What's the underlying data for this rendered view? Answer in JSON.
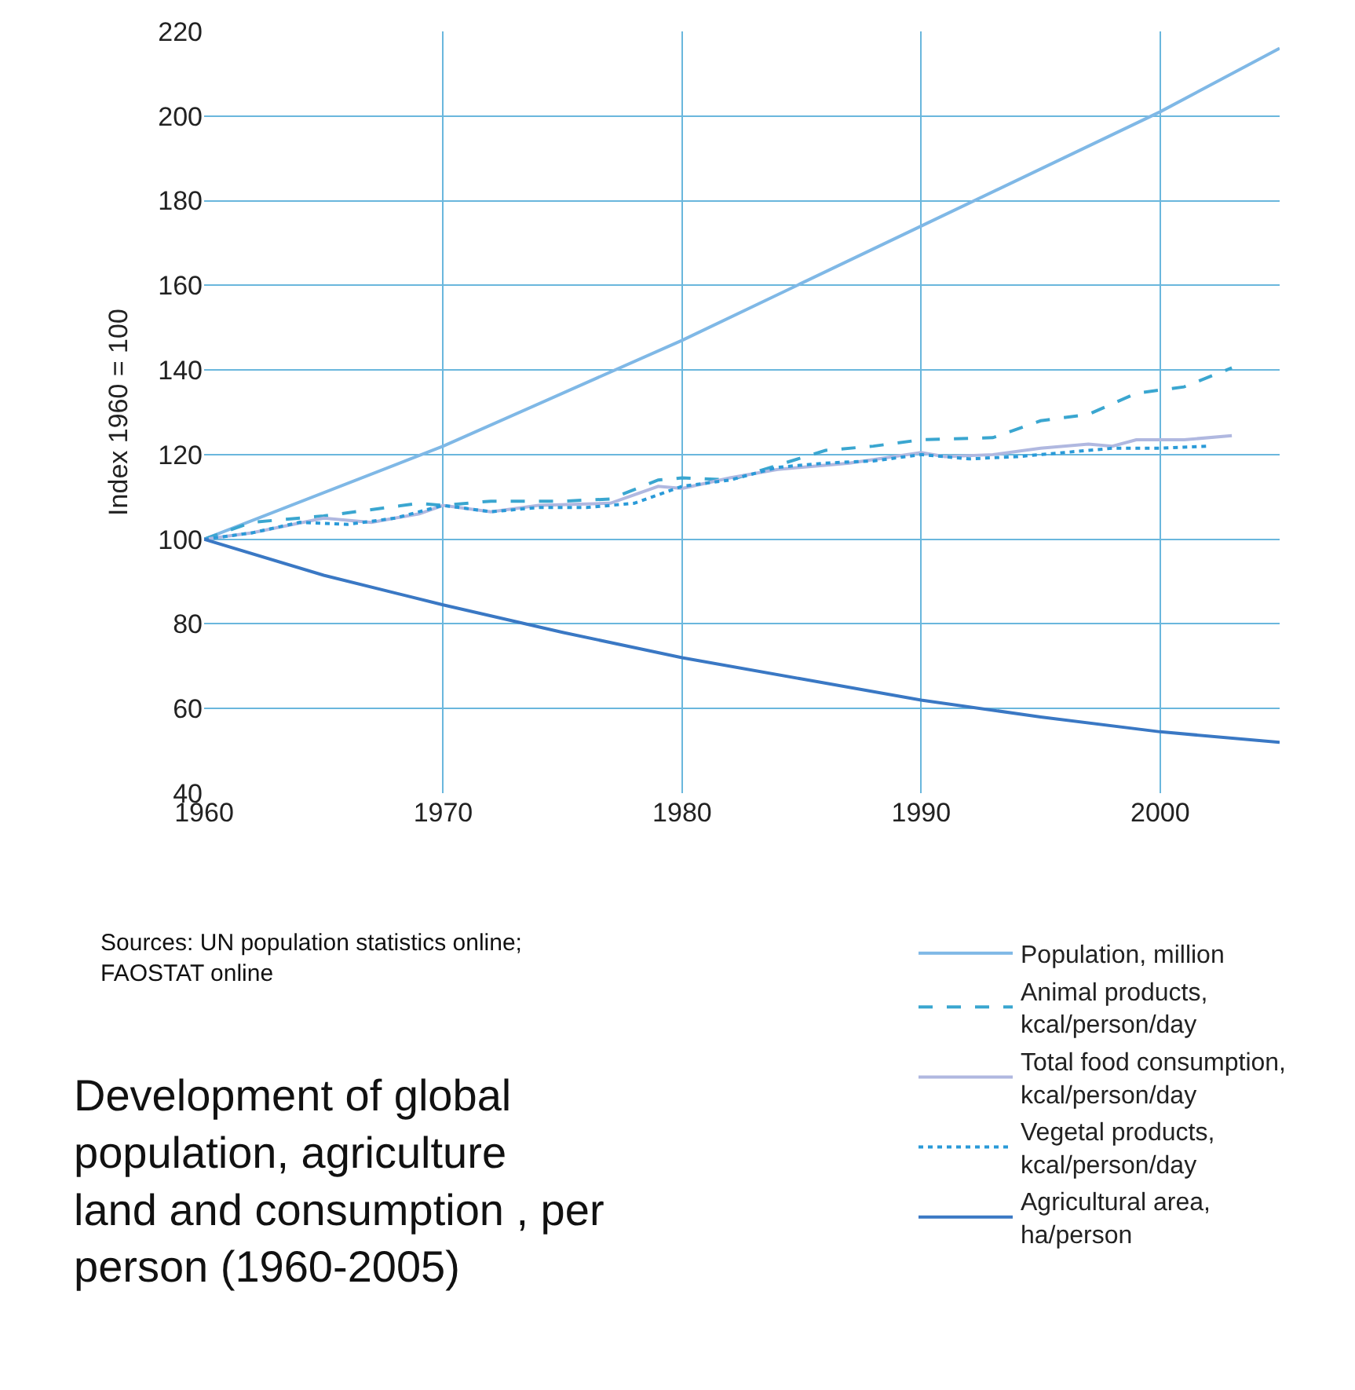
{
  "chart_data": {
    "type": "line",
    "ylabel": "Index 1960 = 100",
    "annotations": [
      "Sources: UN population statistics online; FAOSTAT online",
      "Development of global population, agriculture land and consumption , per person (1960-2005)"
    ],
    "xlim": [
      1960,
      2005
    ],
    "xticks": [
      1960,
      1970,
      1980,
      1990,
      2000
    ],
    "ylim": [
      40,
      220
    ],
    "yticks": [
      40,
      60,
      80,
      100,
      120,
      140,
      160,
      180,
      200,
      220
    ],
    "grid": true,
    "legend": "bottom right",
    "series": [
      {
        "name": "Population, million",
        "color": "#7fb8e6",
        "line_style": "solid",
        "x": [
          1960,
          1970,
          1980,
          1990,
          2000,
          2005
        ],
        "values": [
          100,
          122,
          147,
          174,
          201,
          216
        ]
      },
      {
        "name": "Animal products, kcal/person/day",
        "color": "#3aa6d0",
        "line_style": "dashed",
        "x": [
          1960,
          1962,
          1965,
          1967,
          1969,
          1970,
          1972,
          1975,
          1977,
          1979,
          1980,
          1982,
          1984,
          1986,
          1988,
          1990,
          1993,
          1995,
          1997,
          1999,
          2001,
          2003
        ],
        "values": [
          100,
          104,
          105.5,
          107,
          108.5,
          108,
          109,
          109,
          109.5,
          114,
          114.5,
          114,
          117.5,
          121,
          122,
          123.5,
          124,
          128,
          129.5,
          134.5,
          136,
          140.5
        ]
      },
      {
        "name": "Total food consumption, kcal/person/day",
        "color": "#b0b8e0",
        "line_style": "solid",
        "x": [
          1960,
          1962,
          1965,
          1967,
          1969,
          1970,
          1972,
          1974,
          1977,
          1979,
          1980,
          1982,
          1984,
          1987,
          1990,
          1991,
          1993,
          1995,
          1997,
          1998,
          1999,
          2001,
          2003
        ],
        "values": [
          100,
          101.5,
          105,
          104,
          106,
          108,
          106.5,
          108,
          108.5,
          112.5,
          112,
          114.5,
          116.5,
          118,
          120.5,
          119.5,
          120,
          121.5,
          122.5,
          122,
          123.5,
          123.5,
          124.5
        ]
      },
      {
        "name": "Vegetal products, kcal/person/day",
        "color": "#2a9ad8",
        "line_style": "dotted",
        "x": [
          1960,
          1962,
          1964,
          1966,
          1968,
          1970,
          1972,
          1974,
          1976,
          1978,
          1980,
          1982,
          1984,
          1986,
          1988,
          1990,
          1992,
          1994,
          1996,
          1998,
          2000,
          2002
        ],
        "values": [
          100,
          101.5,
          104,
          103.5,
          105,
          108,
          106.5,
          107.5,
          107.5,
          108.5,
          112.5,
          114,
          117,
          118,
          118.5,
          120,
          119,
          119.5,
          120.5,
          121.5,
          121.5,
          122
        ]
      },
      {
        "name": "Agricultural area, ha/person",
        "color": "#3a78c4",
        "line_style": "solid",
        "x": [
          1960,
          1965,
          1970,
          1975,
          1980,
          1985,
          1990,
          1995,
          2000,
          2005
        ],
        "values": [
          100,
          91.5,
          84.5,
          78,
          72,
          67,
          62,
          58,
          54.5,
          52
        ]
      }
    ]
  }
}
